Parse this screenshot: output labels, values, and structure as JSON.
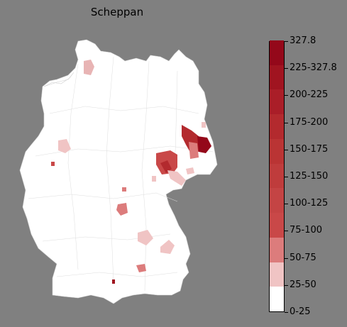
{
  "title": "Scheppan",
  "colors": {
    "background": "#808080",
    "land": "#ffffff",
    "border": "#c8c8c8"
  },
  "legend": {
    "tick_labels": [
      "327.8",
      "225-327.8",
      "200-225",
      "175-200",
      "150-175",
      "125-150",
      "100-125",
      "75-100",
      "50-75",
      "25-50",
      "0-25"
    ],
    "bins": [
      {
        "label": "0-25",
        "color": "#ffffff"
      },
      {
        "label": "25-50",
        "color": "#f0c4c4"
      },
      {
        "label": "50-75",
        "color": "#dc7c7c"
      },
      {
        "label": "75-100",
        "color": "#c94848"
      },
      {
        "label": "100-125",
        "color": "#c44444"
      },
      {
        "label": "125-150",
        "color": "#bf3c3c"
      },
      {
        "label": "150-175",
        "color": "#ba3434"
      },
      {
        "label": "175-200",
        "color": "#b32a2e"
      },
      {
        "label": "200-225",
        "color": "#aa1e28"
      },
      {
        "label": "225-327.8",
        "color": "#a01420"
      },
      {
        "label": "327.8",
        "color": "#94081a"
      }
    ]
  }
}
